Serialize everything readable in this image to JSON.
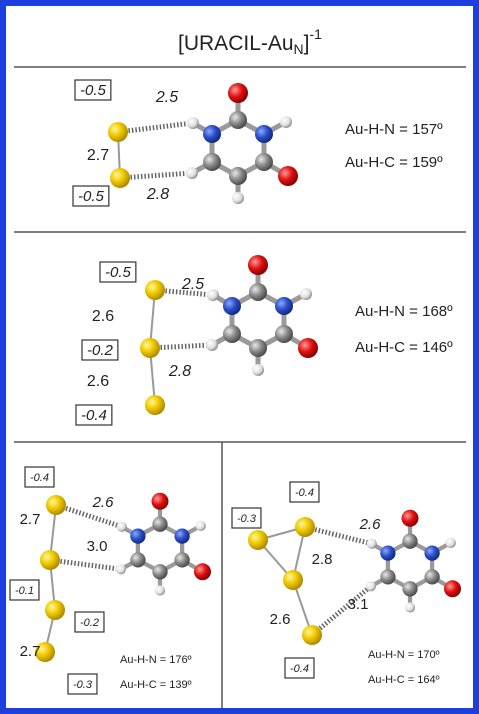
{
  "title": {
    "main": "[URACIL-Au",
    "subscript": "N",
    "close": "]",
    "superscript": "-1"
  },
  "panels": [
    {
      "charges": [
        "-0.5",
        "-0.5"
      ],
      "distances": [
        "2.5",
        "2.7",
        "2.8"
      ],
      "angles": [
        "Au-H-N = 157º",
        "Au-H-C = 159º"
      ]
    },
    {
      "charges": [
        "-0.5",
        "-0.2",
        "-0.4"
      ],
      "distances": [
        "2.5",
        "2.6",
        "2.8",
        "2.6"
      ],
      "angles": [
        "Au-H-N = 168º",
        "Au-H-C = 146º"
      ]
    },
    {
      "charges": [
        "-0.4",
        "-0.1",
        "-0.2",
        "-0.3"
      ],
      "distances": [
        "2.6",
        "2.7",
        "3.0",
        "2.7"
      ],
      "angles": [
        "Au-H-N = 176º",
        "Au-H-C = 139º"
      ]
    },
    {
      "charges": [
        "-0.4",
        "-0.3",
        "-0.4"
      ],
      "distances": [
        "2.6",
        "2.8",
        "2.6",
        "3.1"
      ],
      "angles": [
        "Au-H-N = 170º",
        "Au-H-C = 164º"
      ]
    }
  ]
}
